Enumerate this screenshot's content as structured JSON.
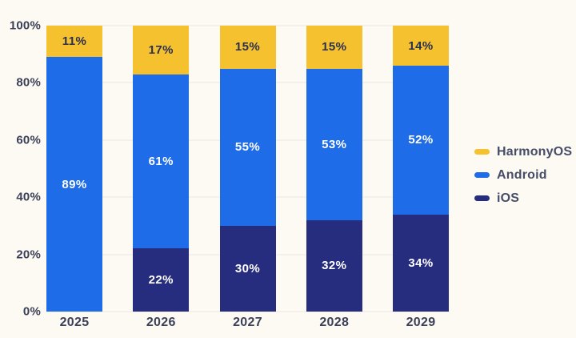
{
  "chart_data": {
    "type": "bar",
    "stacked": true,
    "categories": [
      "2025",
      "2026",
      "2027",
      "2028",
      "2029"
    ],
    "series": [
      {
        "name": "HarmonyOS",
        "color": "#f5c12e",
        "label_color": "#2b3050",
        "values": [
          11,
          17,
          15,
          15,
          14
        ]
      },
      {
        "name": "Android",
        "color": "#1e6ce8",
        "label_color": "#ffffff",
        "values": [
          89,
          61,
          55,
          53,
          52
        ]
      },
      {
        "name": "iOS",
        "color": "#262c7e",
        "label_color": "#ffffff",
        "values": [
          0,
          22,
          30,
          32,
          34
        ]
      }
    ],
    "value_suffix": "%",
    "y_ticks": [
      "100%",
      "80%",
      "60%",
      "40%",
      "20%",
      "0%"
    ],
    "ylim": [
      0,
      100
    ],
    "grid": true,
    "legend": [
      "HarmonyOS",
      "Android",
      "iOS"
    ],
    "legend_position": "right",
    "colors": {
      "background": "#fdf9f3",
      "gridline": "#ebe7e0",
      "axis_text": "#3a4057",
      "legend_text": "#454d68"
    },
    "hide_zero_labels": true
  }
}
